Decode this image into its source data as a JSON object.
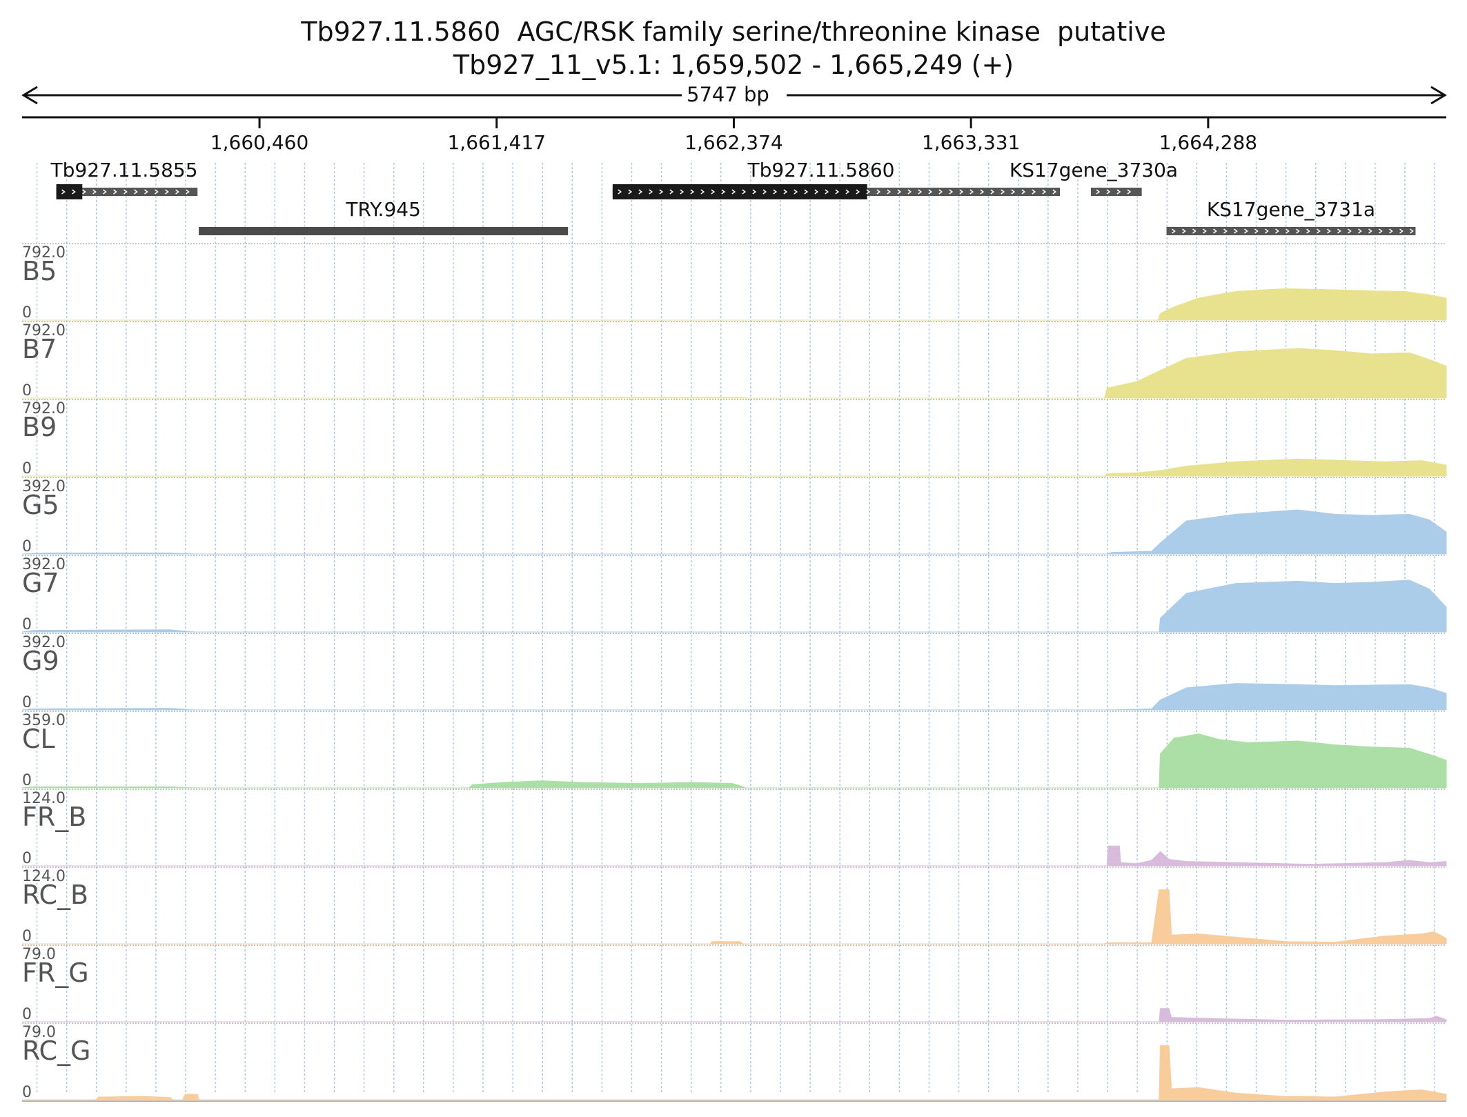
{
  "header": {
    "title_line1": "Tb927.11.5860  AGC/RSK family serine/threonine kinase  putative",
    "title_line2": "Tb927_11_v5.1: 1,659,502 - 1,665,249 (+)"
  },
  "ruler": {
    "span_label": "5747 bp",
    "start": 1659502,
    "end": 1665249,
    "ticks": [
      {
        "pos": 1660460,
        "label": "1,660,460"
      },
      {
        "pos": 1661417,
        "label": "1,661,417"
      },
      {
        "pos": 1662374,
        "label": "1,662,374"
      },
      {
        "pos": 1663331,
        "label": "1,663,331"
      },
      {
        "pos": 1664288,
        "label": "1,664,288"
      }
    ]
  },
  "genes": [
    {
      "name": "Tb927.11.5855",
      "start": 1659640,
      "end": 1660210,
      "cds_start": 1659640,
      "cds_end": 1659745,
      "row": 0,
      "label": "Tb927.11.5855"
    },
    {
      "name": "Tb927.11.5860",
      "start": 1661885,
      "end": 1663690,
      "cds_start": 1661885,
      "cds_end": 1662912,
      "row": 0,
      "label": "Tb927.11.5860"
    },
    {
      "name": "KS17gene_3730a",
      "start": 1663815,
      "end": 1664020,
      "cds_start": null,
      "cds_end": null,
      "row": 0,
      "label": "KS17gene_3730a"
    },
    {
      "name": "TRY.945",
      "start": 1660215,
      "end": 1661705,
      "cds_start": null,
      "cds_end": null,
      "row": 1,
      "label": "TRY.945",
      "plain": true
    },
    {
      "name": "KS17gene_3731a",
      "start": 1664120,
      "end": 1665125,
      "cds_start": null,
      "cds_end": null,
      "row": 1,
      "label": "KS17gene_3731a"
    }
  ],
  "tracks": [
    {
      "name": "B5",
      "max": "792.0",
      "zero": "0",
      "color": "#e8e28e",
      "profile": [
        [
          1659502,
          0
        ],
        [
          1664085,
          0
        ],
        [
          1664095,
          0.12
        ],
        [
          1664150,
          0.24
        ],
        [
          1664250,
          0.4
        ],
        [
          1664400,
          0.52
        ],
        [
          1664600,
          0.57
        ],
        [
          1664800,
          0.55
        ],
        [
          1664950,
          0.53
        ],
        [
          1665080,
          0.52
        ],
        [
          1665180,
          0.46
        ],
        [
          1665249,
          0.4
        ]
      ]
    },
    {
      "name": "B7",
      "max": "792.0",
      "zero": "0",
      "color": "#e8e28e",
      "profile": [
        [
          1659502,
          0
        ],
        [
          1661320,
          0
        ],
        [
          1661350,
          0.01
        ],
        [
          1662400,
          0.01
        ],
        [
          1662430,
          0
        ],
        [
          1663870,
          0
        ],
        [
          1663880,
          0.18
        ],
        [
          1664000,
          0.3
        ],
        [
          1664095,
          0.5
        ],
        [
          1664200,
          0.72
        ],
        [
          1664400,
          0.84
        ],
        [
          1664650,
          0.9
        ],
        [
          1664800,
          0.86
        ],
        [
          1664950,
          0.8
        ],
        [
          1665100,
          0.82
        ],
        [
          1665180,
          0.7
        ],
        [
          1665249,
          0.58
        ]
      ]
    },
    {
      "name": "B9",
      "max": "792.0",
      "zero": "0",
      "color": "#e8e28e",
      "profile": [
        [
          1659502,
          0
        ],
        [
          1661320,
          0
        ],
        [
          1661350,
          0.01
        ],
        [
          1662400,
          0.01
        ],
        [
          1662430,
          0
        ],
        [
          1663870,
          0
        ],
        [
          1663880,
          0.04
        ],
        [
          1664000,
          0.06
        ],
        [
          1664095,
          0.1
        ],
        [
          1664200,
          0.18
        ],
        [
          1664400,
          0.26
        ],
        [
          1664650,
          0.31
        ],
        [
          1664850,
          0.28
        ],
        [
          1665000,
          0.26
        ],
        [
          1665150,
          0.28
        ],
        [
          1665249,
          0.2
        ]
      ]
    },
    {
      "name": "G5",
      "max": "392.0",
      "zero": "0",
      "color": "#abcdea",
      "profile": [
        [
          1659502,
          0
        ],
        [
          1659600,
          0.02
        ],
        [
          1660100,
          0.02
        ],
        [
          1660200,
          0
        ],
        [
          1663880,
          0
        ],
        [
          1663900,
          0.03
        ],
        [
          1664060,
          0.05
        ],
        [
          1664095,
          0.2
        ],
        [
          1664200,
          0.6
        ],
        [
          1664400,
          0.72
        ],
        [
          1664650,
          0.8
        ],
        [
          1664800,
          0.72
        ],
        [
          1664950,
          0.7
        ],
        [
          1665100,
          0.72
        ],
        [
          1665180,
          0.62
        ],
        [
          1665249,
          0.4
        ]
      ]
    },
    {
      "name": "G7",
      "max": "392.0",
      "zero": "0",
      "color": "#abcdea",
      "profile": [
        [
          1659502,
          0
        ],
        [
          1659550,
          0.03
        ],
        [
          1660100,
          0.04
        ],
        [
          1660200,
          0
        ],
        [
          1664090,
          0
        ],
        [
          1664095,
          0.25
        ],
        [
          1664200,
          0.7
        ],
        [
          1664400,
          0.88
        ],
        [
          1664650,
          0.92
        ],
        [
          1664800,
          0.88
        ],
        [
          1664950,
          0.9
        ],
        [
          1665100,
          0.94
        ],
        [
          1665180,
          0.78
        ],
        [
          1665249,
          0.45
        ]
      ]
    },
    {
      "name": "G9",
      "max": "392.0",
      "zero": "0",
      "color": "#abcdea",
      "profile": [
        [
          1659502,
          0
        ],
        [
          1659550,
          0.02
        ],
        [
          1660100,
          0.03
        ],
        [
          1660200,
          0
        ],
        [
          1663880,
          0
        ],
        [
          1664060,
          0.02
        ],
        [
          1664095,
          0.18
        ],
        [
          1664200,
          0.4
        ],
        [
          1664400,
          0.48
        ],
        [
          1664650,
          0.46
        ],
        [
          1664800,
          0.44
        ],
        [
          1664950,
          0.45
        ],
        [
          1665100,
          0.46
        ],
        [
          1665180,
          0.4
        ],
        [
          1665249,
          0.3
        ]
      ]
    },
    {
      "name": "CL",
      "max": "359.0",
      "zero": "0",
      "color": "#acdfa6",
      "profile": [
        [
          1659502,
          0
        ],
        [
          1659550,
          0.02
        ],
        [
          1660100,
          0.02
        ],
        [
          1660200,
          0
        ],
        [
          1661305,
          0
        ],
        [
          1661320,
          0.06
        ],
        [
          1661450,
          0.1
        ],
        [
          1661600,
          0.13
        ],
        [
          1661750,
          0.1
        ],
        [
          1662000,
          0.08
        ],
        [
          1662200,
          0.1
        ],
        [
          1662370,
          0.08
        ],
        [
          1662400,
          0.04
        ],
        [
          1662420,
          0
        ],
        [
          1664090,
          0
        ],
        [
          1664095,
          0.62
        ],
        [
          1664150,
          0.9
        ],
        [
          1664250,
          0.98
        ],
        [
          1664330,
          0.88
        ],
        [
          1664450,
          0.82
        ],
        [
          1664650,
          0.85
        ],
        [
          1664800,
          0.78
        ],
        [
          1664950,
          0.74
        ],
        [
          1665100,
          0.72
        ],
        [
          1665200,
          0.58
        ],
        [
          1665249,
          0.5
        ]
      ]
    },
    {
      "name": "FR_B",
      "max": "124.0",
      "zero": "0",
      "color": "#d9bbdc",
      "profile": [
        [
          1659502,
          0
        ],
        [
          1663880,
          0
        ],
        [
          1663885,
          0.36
        ],
        [
          1663930,
          0.36
        ],
        [
          1663935,
          0.06
        ],
        [
          1664000,
          0.04
        ],
        [
          1664060,
          0.1
        ],
        [
          1664095,
          0.26
        ],
        [
          1664130,
          0.12
        ],
        [
          1664200,
          0.08
        ],
        [
          1664400,
          0.06
        ],
        [
          1664700,
          0.03
        ],
        [
          1665000,
          0.06
        ],
        [
          1665100,
          0.1
        ],
        [
          1665180,
          0.06
        ],
        [
          1665249,
          0.08
        ]
      ]
    },
    {
      "name": "RC_B",
      "max": "124.0",
      "zero": "0",
      "color": "#f9cc9b",
      "profile": [
        [
          1659502,
          0
        ],
        [
          1662280,
          0
        ],
        [
          1662285,
          0.04
        ],
        [
          1662400,
          0.04
        ],
        [
          1662410,
          0
        ],
        [
          1663870,
          0
        ],
        [
          1663880,
          0.02
        ],
        [
          1664060,
          0.02
        ],
        [
          1664090,
          0.98
        ],
        [
          1664130,
          0.98
        ],
        [
          1664140,
          0.16
        ],
        [
          1664250,
          0.18
        ],
        [
          1664400,
          0.12
        ],
        [
          1664600,
          0.04
        ],
        [
          1664800,
          0.03
        ],
        [
          1665000,
          0.14
        ],
        [
          1665150,
          0.18
        ],
        [
          1665200,
          0.22
        ],
        [
          1665249,
          0.1
        ]
      ]
    },
    {
      "name": "FR_G",
      "max": "79.0",
      "zero": "0",
      "color": "#d9bbdc",
      "profile": [
        [
          1659502,
          0
        ],
        [
          1664090,
          0
        ],
        [
          1664095,
          0.24
        ],
        [
          1664130,
          0.24
        ],
        [
          1664140,
          0.08
        ],
        [
          1664300,
          0.06
        ],
        [
          1664600,
          0.03
        ],
        [
          1665000,
          0.04
        ],
        [
          1665180,
          0.06
        ],
        [
          1665210,
          0.1
        ],
        [
          1665249,
          0.04
        ]
      ]
    },
    {
      "name": "RC_G",
      "max": "79.0",
      "zero": "0",
      "color": "#f9cc9b",
      "profile": [
        [
          1659502,
          0
        ],
        [
          1659800,
          0
        ],
        [
          1659810,
          0.05
        ],
        [
          1660000,
          0.06
        ],
        [
          1660100,
          0.04
        ],
        [
          1660110,
          0
        ],
        [
          1660150,
          0
        ],
        [
          1660160,
          0.1
        ],
        [
          1660210,
          0.1
        ],
        [
          1660215,
          0
        ],
        [
          1664090,
          0
        ],
        [
          1664095,
          0.98
        ],
        [
          1664130,
          0.98
        ],
        [
          1664140,
          0.2
        ],
        [
          1664250,
          0.22
        ],
        [
          1664400,
          0.12
        ],
        [
          1664600,
          0.06
        ],
        [
          1664800,
          0.05
        ],
        [
          1665000,
          0.14
        ],
        [
          1665150,
          0.18
        ],
        [
          1665200,
          0.14
        ],
        [
          1665249,
          0.1
        ]
      ]
    }
  ]
}
